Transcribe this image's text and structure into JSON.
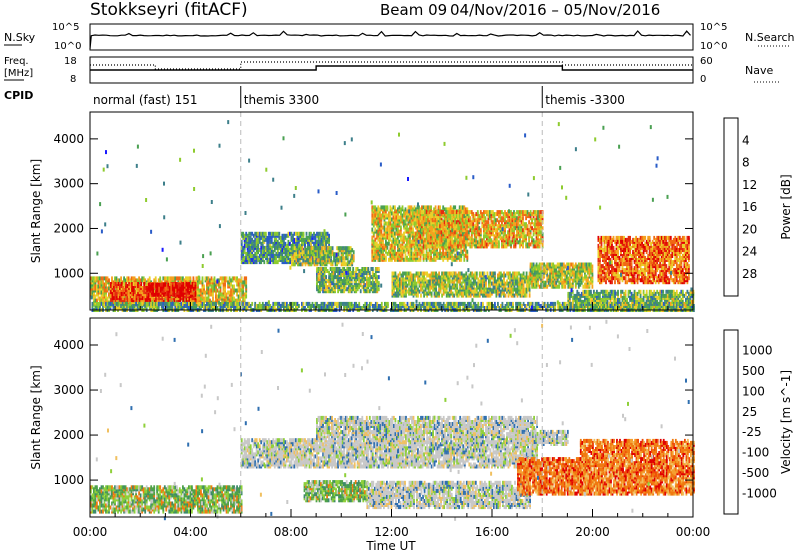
{
  "header": {
    "radar": "Stokkseyri (fitACF)",
    "beam": "Beam 09",
    "date_range": "04/Nov/2016 – 05/Nov/2016"
  },
  "status_panels": {
    "nsky_label": "N.Sky",
    "nsearch_label": "N.Search",
    "nsky_ticks": [
      "10^5",
      "10^0"
    ],
    "nsearch_ticks": [
      "10^5",
      "10^0"
    ],
    "freq_label": "Freq.",
    "freq_unit": "[MHz]",
    "freq_ticks": [
      "18",
      "8"
    ],
    "nave_label": "Nave",
    "nave_ticks": [
      "60",
      "0"
    ],
    "cpid_label": "CPID",
    "cpid_segments": [
      {
        "label": "normal (fast) 151",
        "start_hour": 0
      },
      {
        "label": "themis 3300",
        "start_hour": 6
      },
      {
        "label": "themis -3300",
        "start_hour": 18
      }
    ],
    "freq_step_hours": [
      9.0,
      18.8
    ],
    "nave_step_hours": [
      2.6,
      6.0
    ]
  },
  "chart_data": [
    {
      "type": "heatmap",
      "name": "power",
      "xlabel": "Time UT",
      "ylabel": "Slant Range [km]",
      "xlim": [
        0,
        24
      ],
      "ylim": [
        180,
        4600
      ],
      "x_ticks": [
        "00:00",
        "04:00",
        "08:00",
        "12:00",
        "16:00",
        "20:00",
        "00:00"
      ],
      "y_ticks": [
        1000,
        2000,
        3000,
        4000
      ],
      "colorbar": {
        "label": "Power [dB]",
        "ticks": [
          4,
          8,
          12,
          16,
          20,
          24,
          28
        ],
        "range": [
          0,
          32
        ],
        "colors": [
          "#1a1aff",
          "#2a5cc8",
          "#3d7f8a",
          "#4aa052",
          "#8ecb2e",
          "#e9d12a",
          "#f5a21e",
          "#f06a14",
          "#e42a10",
          "#e00000"
        ]
      },
      "echo_regions": [
        {
          "t0": 0.0,
          "t1": 6.2,
          "r0": 300,
          "r1": 900,
          "level": 0.55
        },
        {
          "t0": 0.8,
          "t1": 4.2,
          "r0": 400,
          "r1": 780,
          "level": 0.8
        },
        {
          "t0": 2.3,
          "t1": 4.2,
          "r0": 520,
          "r1": 760,
          "level": 0.95
        },
        {
          "t0": 0.0,
          "t1": 24.0,
          "r0": 180,
          "r1": 330,
          "level": 0.35
        },
        {
          "t0": 6.0,
          "t1": 9.5,
          "r0": 1250,
          "r1": 1900,
          "level": 0.3
        },
        {
          "t0": 8.0,
          "t1": 10.5,
          "r0": 1200,
          "r1": 1600,
          "level": 0.45
        },
        {
          "t0": 11.2,
          "t1": 15.0,
          "r0": 1300,
          "r1": 2500,
          "level": 0.55
        },
        {
          "t0": 13.0,
          "t1": 18.0,
          "r0": 1600,
          "r1": 2400,
          "level": 0.6
        },
        {
          "t0": 9.0,
          "t1": 11.5,
          "r0": 600,
          "r1": 1100,
          "level": 0.4
        },
        {
          "t0": 12.0,
          "t1": 17.5,
          "r0": 500,
          "r1": 1000,
          "level": 0.45
        },
        {
          "t0": 17.5,
          "t1": 20.0,
          "r0": 700,
          "r1": 1200,
          "level": 0.5
        },
        {
          "t0": 20.2,
          "t1": 23.8,
          "r0": 800,
          "r1": 1800,
          "level": 0.75
        },
        {
          "t0": 19.0,
          "t1": 24.0,
          "r0": 180,
          "r1": 600,
          "level": 0.4
        }
      ]
    },
    {
      "type": "heatmap",
      "name": "velocity",
      "xlabel": "Time UT",
      "ylabel": "Slant Range [km]",
      "xlim": [
        0,
        24
      ],
      "ylim": [
        180,
        4600
      ],
      "x_ticks": [
        "00:00",
        "04:00",
        "08:00",
        "12:00",
        "16:00",
        "20:00",
        "00:00"
      ],
      "y_ticks": [
        1000,
        2000,
        3000,
        4000
      ],
      "colorbar": {
        "label": "Velocity [m s^-1]",
        "ticks": [
          "1000",
          "500",
          "100",
          "25",
          "-25",
          "-100",
          "-500",
          "-1000"
        ],
        "colors": [
          "#1a3fd0",
          "#2f6fb0",
          "#3e8a6a",
          "#4ea248",
          "#8fd03a",
          "#c8c8c8",
          "#f0c060",
          "#f5a030",
          "#f07a10",
          "#ee4a08",
          "#e00000"
        ]
      },
      "echo_regions": [
        {
          "t0": 0.0,
          "t1": 6.0,
          "r0": 300,
          "r1": 850,
          "kind": "green"
        },
        {
          "t0": 6.0,
          "t1": 9.0,
          "r0": 1300,
          "r1": 1900,
          "kind": "gray"
        },
        {
          "t0": 9.0,
          "t1": 17.8,
          "r0": 1300,
          "r1": 2400,
          "kind": "gray"
        },
        {
          "t0": 17.0,
          "t1": 19.0,
          "r0": 1800,
          "r1": 2100,
          "kind": "gray"
        },
        {
          "t0": 8.5,
          "t1": 11.0,
          "r0": 550,
          "r1": 1000,
          "kind": "green"
        },
        {
          "t0": 11.0,
          "t1": 17.5,
          "r0": 400,
          "r1": 950,
          "kind": "gray"
        },
        {
          "t0": 17.0,
          "t1": 19.8,
          "r0": 700,
          "r1": 1500,
          "kind": "orange"
        },
        {
          "t0": 19.5,
          "t1": 24.0,
          "r0": 700,
          "r1": 1900,
          "kind": "orange"
        }
      ]
    }
  ]
}
